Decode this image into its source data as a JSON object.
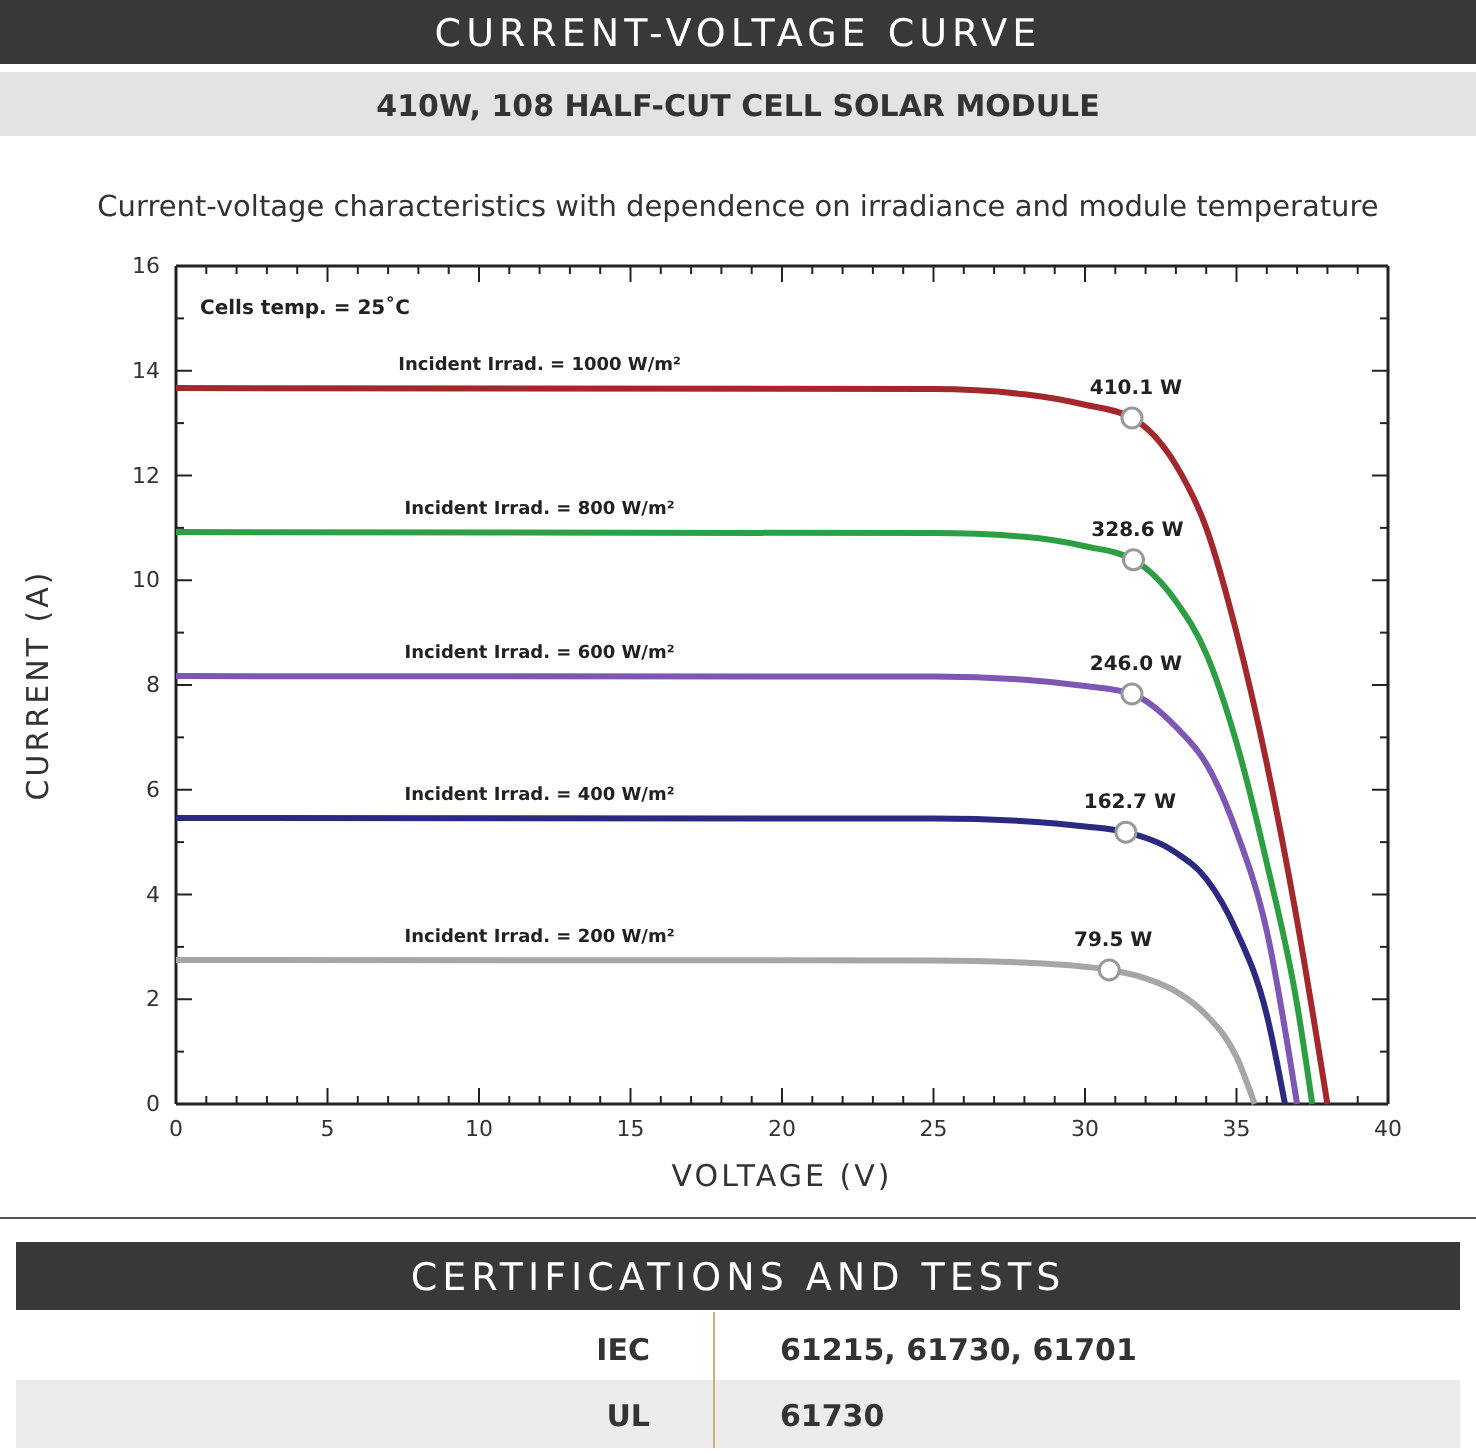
{
  "chart_data": {
    "type": "line",
    "title": "CURRENT-VOLTAGE CURVE",
    "subtitle": "410W, 108 HALF-CUT CELL SOLAR MODULE",
    "xlabel": "VOLTAGE (V)",
    "ylabel": "CURRENT (A)",
    "annotations": [
      "Current-voltage characteristics with dependence on irradiance and module temperature",
      "Cells temp. = 25˚C",
      "CERTIFICATIONS AND TESTS",
      "IEC",
      "61215, 61730, 61701",
      "UL",
      "61730",
      {
        "text": "410.1 W",
        "x": 31.55,
        "y": 13.1
      },
      {
        "text": "328.6 W",
        "x": 31.6,
        "y": 10.39
      },
      {
        "text": "246.0 W",
        "x": 31.55,
        "y": 7.83
      },
      {
        "text": "162.7 W",
        "x": 31.35,
        "y": 5.19
      },
      {
        "text": "79.5 W",
        "x": 30.8,
        "y": 2.56
      }
    ],
    "xlim": [
      0,
      40
    ],
    "ylim": [
      0,
      16
    ],
    "xticks": [
      0,
      {
        "value": 1,
        "label": null
      },
      {
        "value": 2,
        "label": null
      },
      {
        "value": 3,
        "label": null
      },
      {
        "value": 4,
        "label": null
      },
      5,
      {
        "value": 6,
        "label": null
      },
      {
        "value": 7,
        "label": null
      },
      {
        "value": 8,
        "label": null
      },
      {
        "value": 9,
        "label": null
      },
      10,
      {
        "value": 11,
        "label": null
      },
      {
        "value": 12,
        "label": null
      },
      {
        "value": 13,
        "label": null
      },
      {
        "value": 14,
        "label": null
      },
      15,
      {
        "value": 16,
        "label": null
      },
      {
        "value": 17,
        "label": null
      },
      {
        "value": 18,
        "label": null
      },
      {
        "value": 19,
        "label": null
      },
      20,
      {
        "value": 21,
        "label": null
      },
      {
        "value": 22,
        "label": null
      },
      {
        "value": 23,
        "label": null
      },
      {
        "value": 24,
        "label": null
      },
      25,
      {
        "value": 26,
        "label": null
      },
      {
        "value": 27,
        "label": null
      },
      {
        "value": 28,
        "label": null
      },
      {
        "value": 29,
        "label": null
      },
      30,
      {
        "value": 31,
        "label": null
      },
      {
        "value": 32,
        "label": null
      },
      {
        "value": 33,
        "label": null
      },
      {
        "value": 34,
        "label": null
      },
      35,
      {
        "value": 36,
        "label": null
      },
      {
        "value": 37,
        "label": null
      },
      {
        "value": 38,
        "label": null
      },
      {
        "value": 39,
        "label": null
      },
      40
    ],
    "yticks": [
      0,
      {
        "value": 1,
        "label": null
      },
      2,
      {
        "value": 3,
        "label": null
      },
      4,
      {
        "value": 5,
        "label": null
      },
      6,
      {
        "value": 7,
        "label": null
      },
      8,
      {
        "value": 9,
        "label": null
      },
      10,
      {
        "value": 11,
        "label": null
      },
      12,
      {
        "value": 13,
        "label": null
      },
      14,
      {
        "value": 15,
        "label": null
      },
      16
    ],
    "grid": false,
    "line_style": "solid",
    "marker": "none",
    "series": [
      {
        "name": "Incident Irrad. = 1000 W/m²",
        "color": "#a3282b",
        "x": [
          0,
          25,
          28,
          30,
          31.55,
          33,
          34,
          35,
          36,
          37,
          38
        ],
        "values": [
          13.67,
          13.65,
          13.55,
          13.35,
          13.1,
          12.2,
          11.0,
          9.0,
          6.5,
          3.5,
          0
        ]
      },
      {
        "name": "Incident Irrad. = 800 W/m²",
        "color": "#2e9e44",
        "x": [
          0,
          25,
          28,
          30,
          31.6,
          33,
          34,
          35,
          36,
          37,
          37.5
        ],
        "values": [
          10.92,
          10.9,
          10.83,
          10.65,
          10.39,
          9.6,
          8.6,
          6.9,
          4.6,
          1.9,
          0
        ]
      },
      {
        "name": "Incident Irrad. = 600 W/m²",
        "color": "#7e57b5",
        "x": [
          0,
          25,
          28,
          30,
          31.55,
          33,
          34,
          35,
          36,
          37
        ],
        "values": [
          8.17,
          8.16,
          8.1,
          7.98,
          7.83,
          7.2,
          6.5,
          5.2,
          3.3,
          0
        ]
      },
      {
        "name": "Incident Irrad. = 400 W/m²",
        "color": "#2b2a80",
        "x": [
          0,
          25,
          28,
          30,
          31.35,
          33,
          34,
          35,
          36,
          36.6
        ],
        "values": [
          5.46,
          5.45,
          5.4,
          5.3,
          5.19,
          4.8,
          4.3,
          3.3,
          1.7,
          0
        ]
      },
      {
        "name": "Incident Irrad. = 200 W/m²",
        "color": "#a6a6a6",
        "x": [
          0,
          25,
          28,
          29.5,
          30.8,
          32,
          33,
          34,
          35,
          35.6
        ],
        "values": [
          2.75,
          2.74,
          2.7,
          2.65,
          2.56,
          2.4,
          2.15,
          1.7,
          0.9,
          0
        ]
      },
      {
        "type": "scatter",
        "marker": "circle",
        "color": "#ffffff",
        "x": [
          31.55,
          31.6,
          31.55,
          31.35,
          30.8
        ],
        "values": [
          13.1,
          10.39,
          7.83,
          5.19,
          2.56
        ]
      }
    ]
  }
}
